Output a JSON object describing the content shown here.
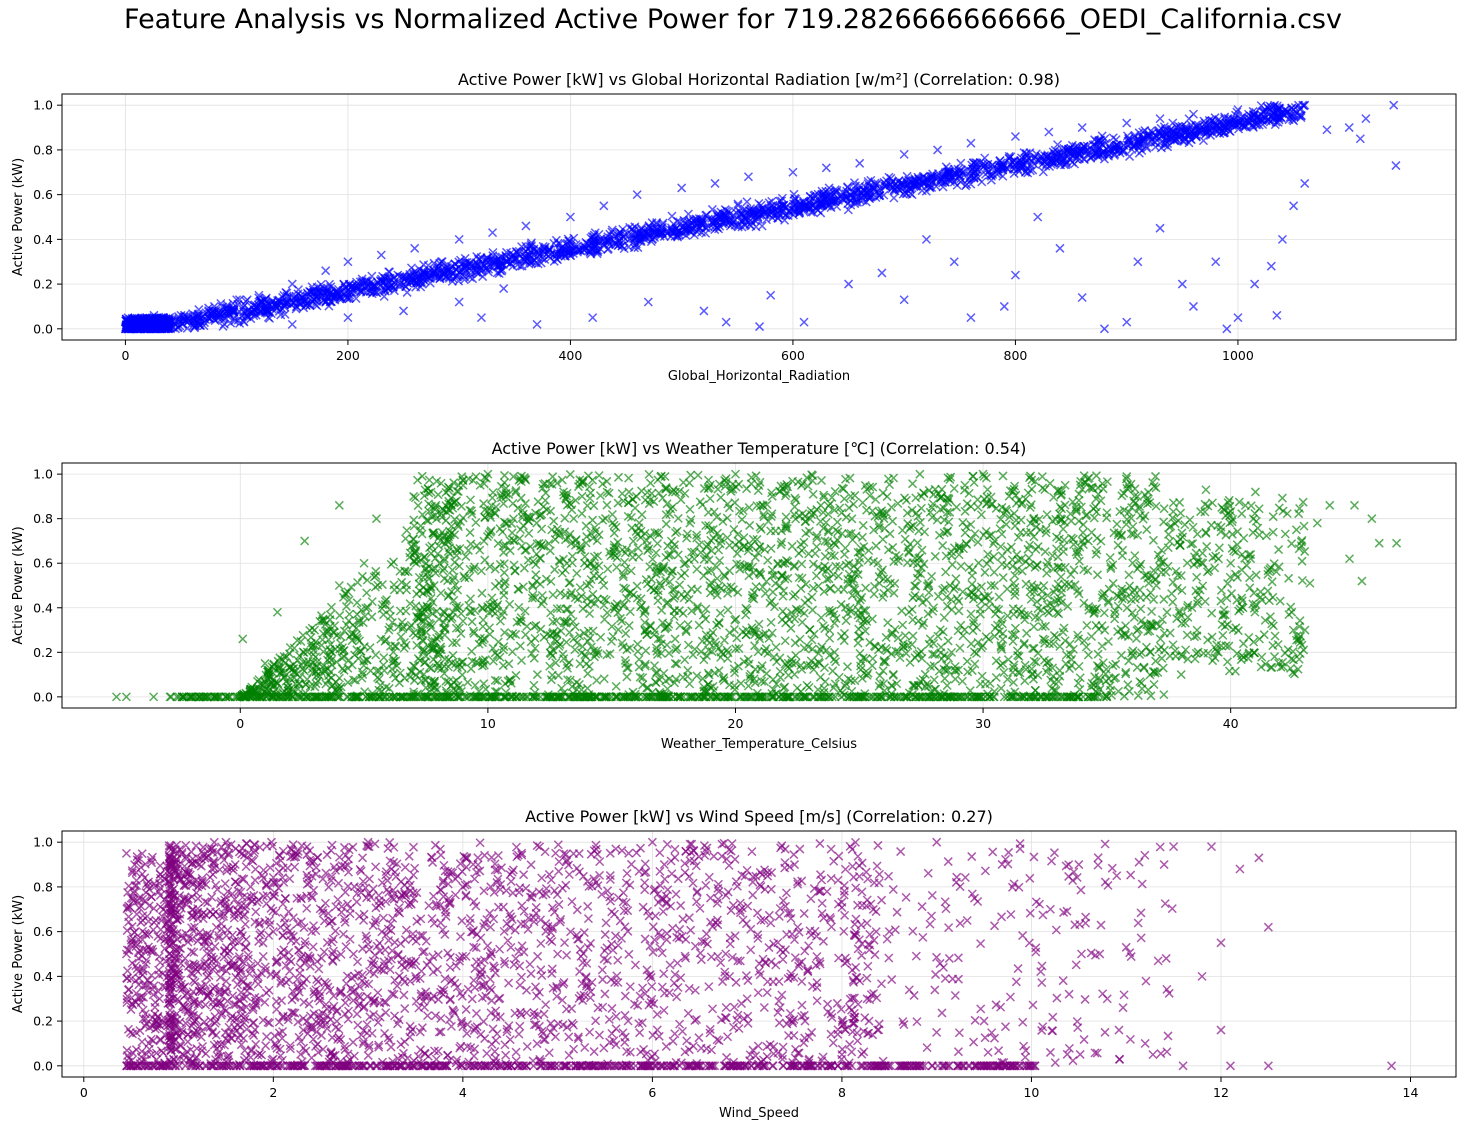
{
  "figure": {
    "title": "Feature Analysis vs Normalized Active Power for 719.2826666666666_OEDI_California.csv"
  },
  "chart_data": [
    {
      "type": "scatter",
      "title": "Active Power [kW] vs Global Horizontal Radiation [w/m²] (Correlation: 0.98)",
      "xlabel": "Global_Horizontal_Radiation",
      "ylabel": "Active Power (kW)",
      "xlim": [
        -57,
        1196
      ],
      "ylim": [
        -0.05,
        1.05
      ],
      "xticks": [
        0,
        200,
        400,
        600,
        800,
        1000
      ],
      "xtick_labels": [
        "0",
        "200",
        "400",
        "600",
        "800",
        "1000"
      ],
      "yticks": [
        0.0,
        0.2,
        0.4,
        0.6,
        0.8,
        1.0
      ],
      "ytick_labels": [
        "0.0",
        "0.2",
        "0.4",
        "0.6",
        "0.8",
        "1.0"
      ],
      "grid": true,
      "marker": "x",
      "color": "#0000ff",
      "correlation": 0.98,
      "points": [
        [
          0,
          0.0
        ],
        [
          5,
          0.01
        ],
        [
          20,
          0.03
        ],
        [
          50,
          0.06
        ],
        [
          80,
          0.1
        ],
        [
          100,
          0.13
        ],
        [
          120,
          0.15
        ],
        [
          150,
          0.2
        ],
        [
          180,
          0.26
        ],
        [
          200,
          0.3
        ],
        [
          230,
          0.33
        ],
        [
          260,
          0.36
        ],
        [
          300,
          0.4
        ],
        [
          330,
          0.43
        ],
        [
          360,
          0.46
        ],
        [
          400,
          0.5
        ],
        [
          430,
          0.55
        ],
        [
          460,
          0.6
        ],
        [
          500,
          0.63
        ],
        [
          530,
          0.65
        ],
        [
          560,
          0.68
        ],
        [
          600,
          0.7
        ],
        [
          630,
          0.72
        ],
        [
          660,
          0.74
        ],
        [
          700,
          0.78
        ],
        [
          730,
          0.8
        ],
        [
          760,
          0.83
        ],
        [
          800,
          0.86
        ],
        [
          830,
          0.88
        ],
        [
          860,
          0.9
        ],
        [
          900,
          0.92
        ],
        [
          930,
          0.94
        ],
        [
          960,
          0.96
        ],
        [
          1000,
          0.98
        ],
        [
          1030,
          0.99
        ],
        [
          1060,
          1.0
        ],
        [
          1080,
          0.89
        ],
        [
          1100,
          0.9
        ],
        [
          1115,
          0.94
        ],
        [
          1110,
          0.85
        ],
        [
          1140,
          1.0
        ],
        [
          1142,
          0.73
        ],
        [
          370,
          0.02
        ],
        [
          420,
          0.05
        ],
        [
          470,
          0.12
        ],
        [
          520,
          0.08
        ],
        [
          570,
          0.01
        ],
        [
          610,
          0.03
        ],
        [
          650,
          0.2
        ],
        [
          680,
          0.25
        ],
        [
          700,
          0.13
        ],
        [
          720,
          0.4
        ],
        [
          745,
          0.3
        ],
        [
          760,
          0.05
        ],
        [
          790,
          0.1
        ],
        [
          800,
          0.24
        ],
        [
          820,
          0.5
        ],
        [
          840,
          0.36
        ],
        [
          860,
          0.14
        ],
        [
          880,
          0.0
        ],
        [
          900,
          0.03
        ],
        [
          910,
          0.3
        ],
        [
          930,
          0.45
        ],
        [
          950,
          0.2
        ],
        [
          960,
          0.1
        ],
        [
          980,
          0.3
        ],
        [
          990,
          0.0
        ],
        [
          1000,
          0.05
        ],
        [
          1015,
          0.2
        ],
        [
          1030,
          0.28
        ],
        [
          1035,
          0.06
        ],
        [
          1040,
          0.4
        ],
        [
          1050,
          0.55
        ],
        [
          1060,
          0.65
        ],
        [
          300,
          0.12
        ],
        [
          320,
          0.05
        ],
        [
          340,
          0.18
        ],
        [
          250,
          0.08
        ],
        [
          200,
          0.05
        ],
        [
          150,
          0.02
        ],
        [
          580,
          0.15
        ],
        [
          540,
          0.03
        ]
      ]
    },
    {
      "type": "scatter",
      "title": "Active Power [kW] vs Weather Temperature [℃] (Correlation: 0.54)",
      "xlabel": "Weather_Temperature_Celsius",
      "ylabel": "Active Power (kW)",
      "xlim": [
        -7.2,
        49.1
      ],
      "ylim": [
        -0.05,
        1.05
      ],
      "xticks": [
        0,
        10,
        20,
        30,
        40
      ],
      "xtick_labels": [
        "0",
        "10",
        "20",
        "30",
        "40"
      ],
      "yticks": [
        0.0,
        0.2,
        0.4,
        0.6,
        0.8,
        1.0
      ],
      "ytick_labels": [
        "0.0",
        "0.2",
        "0.4",
        "0.6",
        "0.8",
        "1.0"
      ],
      "grid": true,
      "marker": "x",
      "color": "#008000",
      "correlation": 0.54,
      "points": [
        [
          -5,
          0.0
        ],
        [
          -4.6,
          0.0
        ],
        [
          -3.5,
          0.0
        ],
        [
          -2,
          0.0
        ],
        [
          0,
          0.0
        ],
        [
          0.1,
          0.26
        ],
        [
          1,
          0.15
        ],
        [
          1.5,
          0.38
        ],
        [
          2.6,
          0.7
        ],
        [
          3,
          0.3
        ],
        [
          4,
          0.86
        ],
        [
          4,
          0.5
        ],
        [
          5,
          0.6
        ],
        [
          5.5,
          0.8
        ],
        [
          6,
          0.3
        ],
        [
          7,
          0.9
        ],
        [
          8,
          0.2
        ],
        [
          9,
          0.95
        ],
        [
          10,
          1.0
        ],
        [
          12,
          0.1
        ],
        [
          14,
          0.5
        ],
        [
          16,
          0.9
        ],
        [
          18,
          0.3
        ],
        [
          20,
          1.0
        ],
        [
          22,
          0.6
        ],
        [
          24,
          0.2
        ],
        [
          26,
          0.8
        ],
        [
          28,
          0.4
        ],
        [
          30,
          1.0
        ],
        [
          32,
          0.1
        ],
        [
          34,
          0.7
        ],
        [
          35,
          0.0
        ],
        [
          36,
          0.85
        ],
        [
          37,
          0.5
        ],
        [
          37.3,
          0.01
        ],
        [
          38,
          0.1
        ],
        [
          39,
          0.93
        ],
        [
          39.5,
          0.2
        ],
        [
          40,
          0.6
        ],
        [
          40.5,
          0.4
        ],
        [
          41,
          0.92
        ],
        [
          41.5,
          0.55
        ],
        [
          42,
          0.43
        ],
        [
          43,
          0.3
        ],
        [
          43.2,
          0.51
        ],
        [
          43.5,
          0.78
        ],
        [
          44,
          0.86
        ],
        [
          45,
          0.86
        ],
        [
          45.3,
          0.52
        ],
        [
          45.7,
          0.8
        ],
        [
          46,
          0.69
        ],
        [
          46.7,
          0.69
        ],
        [
          44.8,
          0.62
        ]
      ]
    },
    {
      "type": "scatter",
      "title": "Active Power [kW] vs Wind Speed [m/s] (Correlation: 0.27)",
      "xlabel": "Wind_Speed",
      "ylabel": "Active Power (kW)",
      "xlim": [
        -0.23,
        14.48
      ],
      "ylim": [
        -0.05,
        1.05
      ],
      "xticks": [
        0,
        2,
        4,
        6,
        8,
        10,
        12,
        14
      ],
      "xtick_labels": [
        "0",
        "2",
        "4",
        "6",
        "8",
        "10",
        "12",
        "14"
      ],
      "yticks": [
        0.0,
        0.2,
        0.4,
        0.6,
        0.8,
        1.0
      ],
      "ytick_labels": [
        "0.0",
        "0.2",
        "0.4",
        "0.6",
        "0.8",
        "1.0"
      ],
      "grid": true,
      "marker": "x",
      "color": "#800080",
      "correlation": 0.27,
      "points": [
        [
          0.45,
          0.0
        ],
        [
          0.45,
          0.95
        ],
        [
          0.45,
          0.5
        ],
        [
          0.5,
          0.75
        ],
        [
          0.8,
          0.3
        ],
        [
          1,
          0.9
        ],
        [
          1.5,
          1.0
        ],
        [
          2,
          0.6
        ],
        [
          2.5,
          0.2
        ],
        [
          3,
          1.0
        ],
        [
          3.5,
          0.4
        ],
        [
          4,
          0.8
        ],
        [
          5,
          0.5
        ],
        [
          6,
          1.0
        ],
        [
          7,
          0.3
        ],
        [
          7.5,
          0.9
        ],
        [
          8,
          0.05
        ],
        [
          8.5,
          0.6
        ],
        [
          9,
          1.0
        ],
        [
          9.5,
          0.2
        ],
        [
          10,
          0.0
        ],
        [
          10.2,
          0.7
        ],
        [
          10.5,
          0.9
        ],
        [
          10.8,
          0.3
        ],
        [
          11,
          0.53
        ],
        [
          11.2,
          0.1
        ],
        [
          11.4,
          0.9
        ],
        [
          11.6,
          0.0
        ],
        [
          11.8,
          0.4
        ],
        [
          12,
          0.55
        ],
        [
          12,
          0.16
        ],
        [
          12.1,
          0.0
        ],
        [
          12.2,
          0.88
        ],
        [
          12.5,
          0.0
        ],
        [
          12.4,
          0.93
        ],
        [
          12.5,
          0.62
        ],
        [
          13.8,
          0.0
        ],
        [
          11.5,
          0.98
        ],
        [
          10.9,
          0.85
        ],
        [
          11.9,
          0.98
        ]
      ]
    }
  ]
}
